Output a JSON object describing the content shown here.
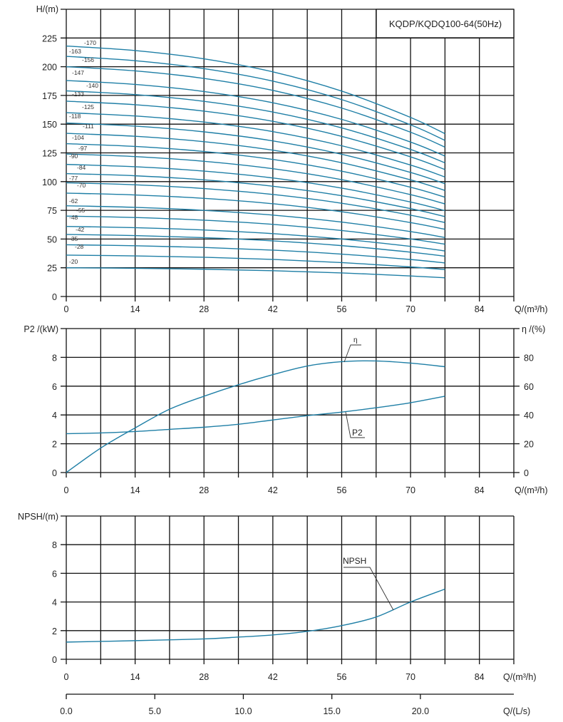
{
  "colors": {
    "curve": "#1f7fa6",
    "grid": "#111111"
  },
  "chart_data": [
    {
      "type": "line",
      "title": "KQDP/KQDQ100-64(50Hz)",
      "xlabel": "Q/(m³/h)",
      "ylabel": "H/(m)",
      "xlim": [
        0,
        91
      ],
      "ylim": [
        0,
        250
      ],
      "x_ticks": [
        "0",
        "14",
        "28",
        "42",
        "56",
        "70",
        "84"
      ],
      "y_ticks": [
        "0",
        "25",
        "50",
        "75",
        "100",
        "125",
        "150",
        "175",
        "200",
        "225"
      ],
      "grid": true,
      "q_points": [
        0,
        14,
        28,
        42,
        56,
        70,
        77
      ],
      "head_ratio": [
        1,
        0.982,
        0.949,
        0.897,
        0.82,
        0.715,
        0.65
      ],
      "series": [
        {
          "name": "-170",
          "shutoff_head": 218
        },
        {
          "name": "-163",
          "shutoff_head": 209
        },
        {
          "name": "-156",
          "shutoff_head": 200
        },
        {
          "name": "-147",
          "shutoff_head": 188
        },
        {
          "name": "-140",
          "shutoff_head": 179
        },
        {
          "name": "-133",
          "shutoff_head": 170
        },
        {
          "name": "-125",
          "shutoff_head": 160
        },
        {
          "name": "-118",
          "shutoff_head": 151
        },
        {
          "name": "-111",
          "shutoff_head": 142
        },
        {
          "name": "-104",
          "shutoff_head": 133
        },
        {
          "name": "-97",
          "shutoff_head": 124
        },
        {
          "name": "-90",
          "shutoff_head": 115
        },
        {
          "name": "-84",
          "shutoff_head": 107
        },
        {
          "name": "-77",
          "shutoff_head": 99
        },
        {
          "name": "-70",
          "shutoff_head": 90
        },
        {
          "name": "-62",
          "shutoff_head": 79
        },
        {
          "name": "-55",
          "shutoff_head": 70
        },
        {
          "name": "-48",
          "shutoff_head": 61
        },
        {
          "name": "-42",
          "shutoff_head": 54
        },
        {
          "name": "-35",
          "shutoff_head": 45
        },
        {
          "name": "-28",
          "shutoff_head": 36
        },
        {
          "name": "-20",
          "shutoff_head": 25
        }
      ]
    },
    {
      "type": "line",
      "xlabel": "Q/(m³/h)",
      "ylabel": "P2 /(kW)",
      "ylabel_right": "η /(%)",
      "xlim": [
        0,
        91
      ],
      "ylim": [
        0,
        10
      ],
      "ylim_right": [
        0,
        100
      ],
      "x_ticks": [
        "0",
        "14",
        "28",
        "42",
        "56",
        "70",
        "84"
      ],
      "y_ticks": [
        "0",
        "2",
        "4",
        "6",
        "8"
      ],
      "y_ticks_right": [
        "0",
        "20",
        "40",
        "60",
        "80"
      ],
      "grid": true,
      "q": [
        0,
        7,
        14,
        21,
        28,
        35,
        42,
        49,
        56,
        63,
        70,
        77
      ],
      "series": [
        {
          "name": "η",
          "axis": "right",
          "values": [
            0,
            17,
            31,
            44,
            53,
            61,
            68,
            74,
            77,
            77.5,
            76,
            73.5
          ]
        },
        {
          "name": "P2",
          "axis": "left",
          "values": [
            2.7,
            2.75,
            2.85,
            3.0,
            3.15,
            3.35,
            3.65,
            3.95,
            4.2,
            4.5,
            4.85,
            5.3
          ]
        }
      ]
    },
    {
      "type": "line",
      "xlabel": "Q/(m³/h)",
      "xlabel2": "Q/(L/s)",
      "ylabel": "NPSH/(m)",
      "xlim": [
        0,
        91
      ],
      "ylim": [
        0,
        10
      ],
      "x_ticks": [
        "0",
        "14",
        "28",
        "42",
        "56",
        "70",
        "84"
      ],
      "x2_ticks": [
        "0.0",
        "5.0",
        "10.0",
        "15.0",
        "20.0"
      ],
      "y_ticks": [
        "0",
        "2",
        "4",
        "6",
        "8"
      ],
      "grid": true,
      "q": [
        0,
        14,
        28,
        35,
        42,
        49,
        56,
        63,
        70,
        77
      ],
      "series": [
        {
          "name": "NPSH",
          "values": [
            1.2,
            1.3,
            1.42,
            1.55,
            1.7,
            1.95,
            2.35,
            2.95,
            4.0,
            4.9
          ]
        }
      ]
    }
  ]
}
